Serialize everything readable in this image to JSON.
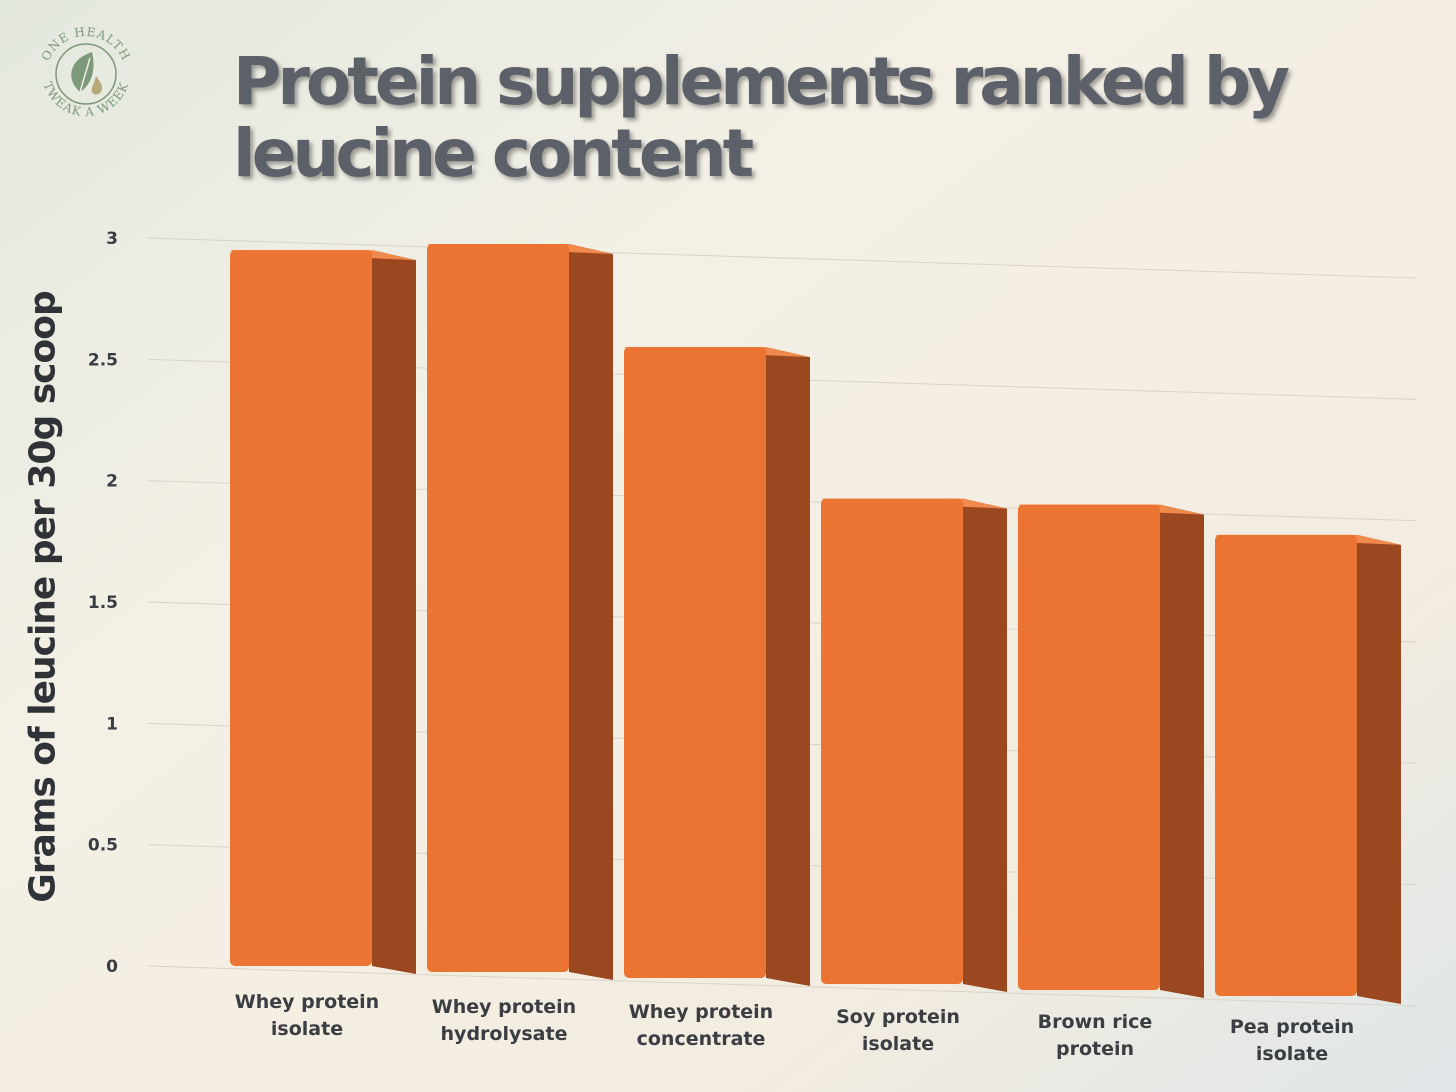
{
  "logo": {
    "text_top": "ONE HEALTH",
    "text_bottom": "TWEAK A WEEK",
    "icon": "leaf-drop-icon",
    "color": "#7c9a79"
  },
  "chart_data": {
    "type": "bar",
    "title_line1": "Protein supplements ranked by",
    "title_line2": "leucine content",
    "xlabel": "",
    "ylabel": "Grams of leucine per 30g scoop",
    "ylim": [
      0,
      3
    ],
    "yticks": [
      "0",
      "0.5",
      "1",
      "1.5",
      "2",
      "2.5",
      "3"
    ],
    "ytick_values": [
      0,
      0.5,
      1,
      1.5,
      2,
      2.5,
      3
    ],
    "categories": [
      [
        "Whey protein",
        "isolate"
      ],
      [
        "Whey protein",
        "hydrolysate"
      ],
      [
        "Whey protein",
        "concentrate"
      ],
      [
        "Soy protein",
        "isolate"
      ],
      [
        "Brown rice",
        "protein"
      ],
      [
        "Pea protein",
        "isolate"
      ]
    ],
    "values": [
      2.95,
      3.0,
      2.6,
      2.0,
      2.0,
      1.9
    ],
    "grid": true,
    "legend": "none",
    "colors": {
      "front": "#ec7433",
      "side": "#9b4720",
      "top": "#f08a4c"
    }
  }
}
